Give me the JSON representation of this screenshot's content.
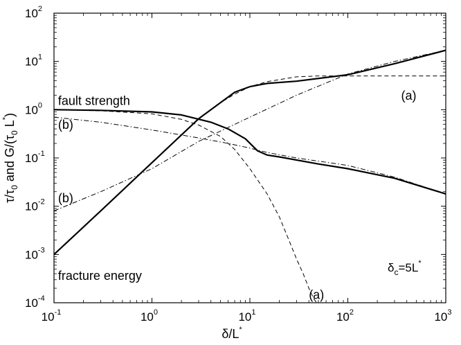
{
  "chart_data": {
    "type": "line",
    "xscale": "log",
    "yscale": "log",
    "xlim": [
      0.1,
      1000
    ],
    "ylim": [
      0.0001,
      100
    ],
    "grid": false,
    "xlabel": {
      "main": "δ/L",
      "sup": "*"
    },
    "ylabel": {
      "tau": "τ/τ",
      "tau_sub": "0",
      "and_g": " and G/(τ",
      "g_sub": "0",
      "l_part": " L",
      "sup": "*",
      "close": ")"
    },
    "x_ticks": [
      {
        "base": "10",
        "exp": "-1",
        "value": 0.1
      },
      {
        "base": "10",
        "exp": "0",
        "value": 1
      },
      {
        "base": "10",
        "exp": "1",
        "value": 10
      },
      {
        "base": "10",
        "exp": "2",
        "value": 100
      },
      {
        "base": "10",
        "exp": "3",
        "value": 1000
      }
    ],
    "y_ticks": [
      {
        "base": "10",
        "exp": "-4",
        "value": 0.0001
      },
      {
        "base": "10",
        "exp": "-3",
        "value": 0.001
      },
      {
        "base": "10",
        "exp": "-2",
        "value": 0.01
      },
      {
        "base": "10",
        "exp": "-1",
        "value": 0.1
      },
      {
        "base": "10",
        "exp": "0",
        "value": 1
      },
      {
        "base": "10",
        "exp": "1",
        "value": 10
      },
      {
        "base": "10",
        "exp": "2",
        "value": 100
      }
    ],
    "series": [
      {
        "style": "solid",
        "x": [
          0.1,
          0.3,
          1,
          2,
          4,
          6,
          9,
          12,
          15,
          20,
          50,
          100,
          300,
          1000
        ],
        "y": [
          1.0,
          0.97,
          0.9,
          0.78,
          0.55,
          0.4,
          0.25,
          0.14,
          0.115,
          0.105,
          0.075,
          0.06,
          0.038,
          0.018
        ]
      },
      {
        "style": "solid",
        "x": [
          0.1,
          0.3,
          1,
          2,
          3,
          5,
          7,
          10,
          15,
          30,
          100,
          300,
          1000
        ],
        "y": [
          0.001,
          0.008,
          0.08,
          0.3,
          0.65,
          1.4,
          2.3,
          3.0,
          3.5,
          3.9,
          5.3,
          9.0,
          17
        ]
      },
      {
        "style": "dashed",
        "x": [
          0.1,
          0.3,
          1,
          2,
          3,
          5,
          7,
          10,
          15,
          20,
          25,
          30,
          35,
          40,
          45,
          48
        ],
        "y": [
          1.0,
          0.95,
          0.82,
          0.63,
          0.48,
          0.28,
          0.15,
          0.06,
          0.018,
          0.006,
          0.002,
          0.0008,
          0.0004,
          0.0002,
          0.00012,
          0.0001
        ]
      },
      {
        "style": "dashed",
        "x": [
          0.1,
          0.3,
          1,
          2,
          3,
          5,
          7,
          10,
          15,
          30,
          50,
          100,
          200,
          1000
        ],
        "y": [
          0.001,
          0.008,
          0.08,
          0.3,
          0.65,
          1.4,
          2.1,
          3.0,
          3.8,
          4.8,
          5.0,
          5.0,
          5.0,
          5.0
        ]
      },
      {
        "style": "dashdot",
        "x": [
          0.1,
          0.3,
          1,
          3,
          6,
          10,
          15,
          30,
          100,
          300,
          1000
        ],
        "y": [
          0.7,
          0.55,
          0.38,
          0.26,
          0.2,
          0.16,
          0.13,
          0.1,
          0.07,
          0.04,
          0.018
        ]
      },
      {
        "style": "dashdot",
        "x": [
          0.1,
          0.3,
          1,
          3,
          10,
          30,
          100,
          300,
          1000
        ],
        "y": [
          0.008,
          0.02,
          0.06,
          0.22,
          0.7,
          2.0,
          5.5,
          10,
          17
        ]
      }
    ],
    "annotations": [
      {
        "text": "fault strength",
        "x": 0.11,
        "y": 1.25
      },
      {
        "text": "fracture energy",
        "x": 0.11,
        "y": 0.0003
      },
      {
        "text": "(b)",
        "x": 0.11,
        "y": 0.4
      },
      {
        "text": "(b)",
        "x": 0.11,
        "y": 0.012
      },
      {
        "text": "(a)",
        "x": 350,
        "y": 1.6
      },
      {
        "text": "(a)",
        "x": 40,
        "y": 0.00012
      }
    ],
    "delta_c_label": {
      "delta": "δ",
      "sub": "c",
      "text": "=5L",
      "sup": "*"
    }
  }
}
